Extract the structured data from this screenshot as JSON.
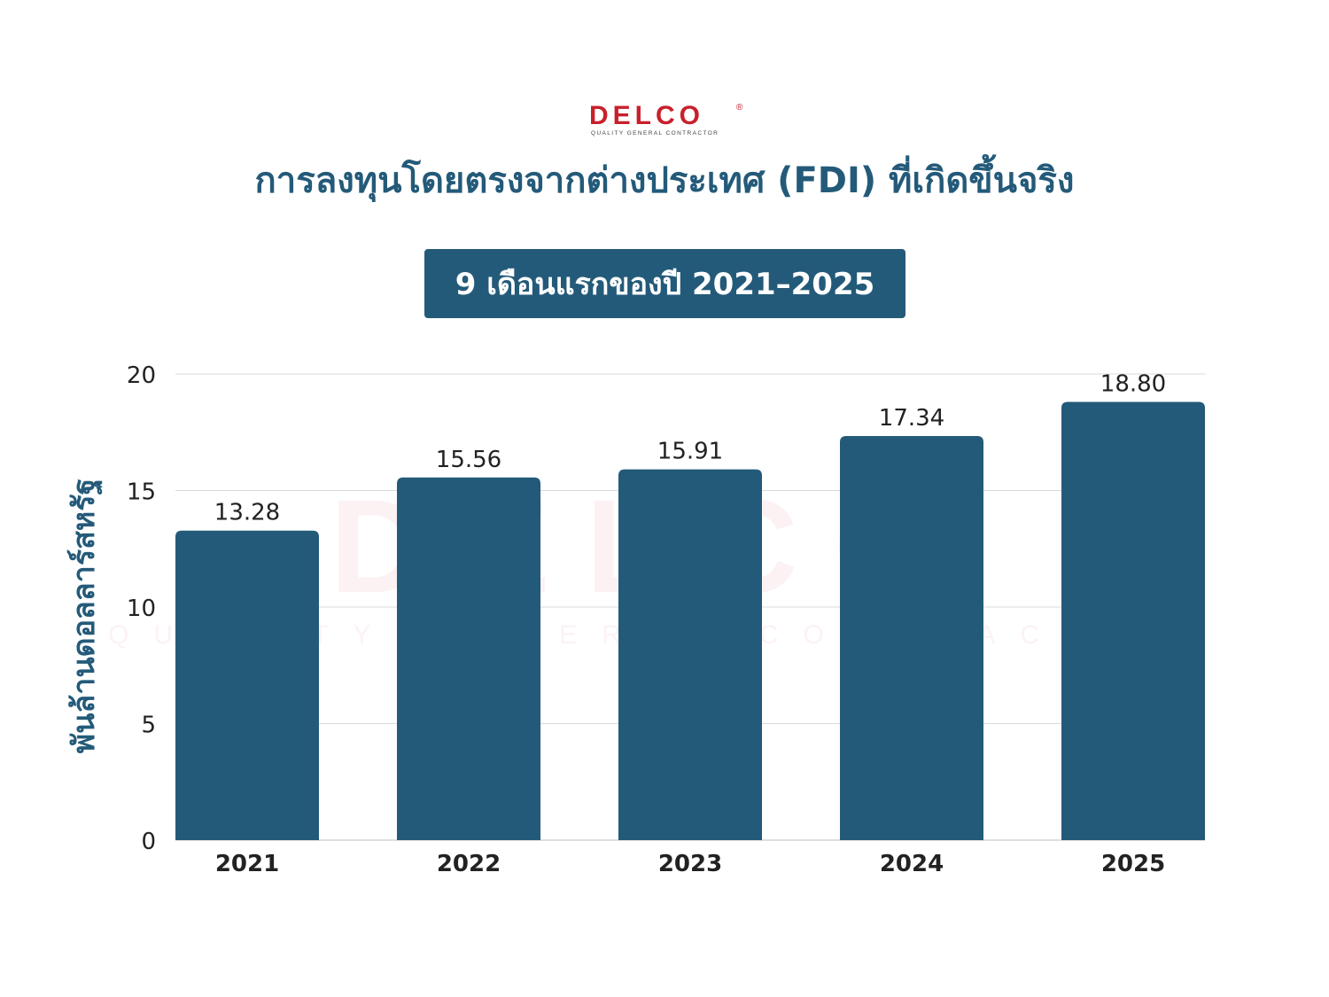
{
  "logo": {
    "word": "DELCO",
    "registered": "®",
    "tagline": "QUALITY GENERAL CONTRACTOR",
    "color": "#c8202b"
  },
  "title": "การลงทุนโดยตรงจากต่างประเทศ (FDI) ที่เกิดขึ้นจริง",
  "subtitle": "9 เดือนแรกของปี 2021–2025",
  "colors": {
    "bar": "#245a79",
    "title": "#245a79",
    "tick_text": "#222222",
    "grid": "#d9d9d9"
  },
  "chart_data": {
    "type": "bar",
    "categories": [
      "2021",
      "2022",
      "2023",
      "2024",
      "2025"
    ],
    "values": [
      13.28,
      15.56,
      15.91,
      17.34,
      18.8
    ],
    "data_labels": [
      "13.28",
      "15.56",
      "15.91",
      "17.34",
      "18.80"
    ],
    "ylabel": "พันล้านดอลลาร์สหรัฐ",
    "ylim": [
      0,
      20
    ],
    "yticks": [
      0,
      5,
      10,
      15,
      20
    ],
    "grid": true,
    "legend": "none"
  }
}
